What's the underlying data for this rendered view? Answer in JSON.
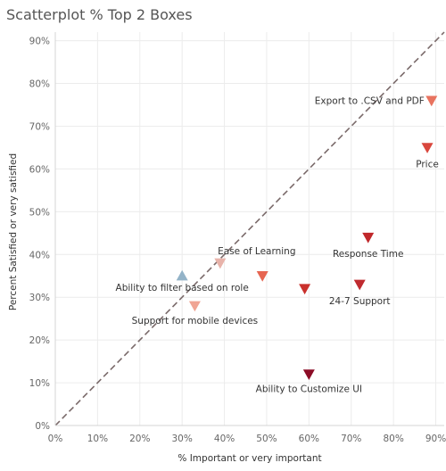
{
  "chart_data": {
    "type": "scatter",
    "title": "Scatterplot % Top 2 Boxes",
    "xlabel": "% Important or very important",
    "ylabel": "Percent Satisfied or very satisfied",
    "xlim": [
      0,
      92
    ],
    "ylim": [
      0,
      92
    ],
    "x_ticks": [
      "0%",
      "10%",
      "20%",
      "30%",
      "40%",
      "50%",
      "60%",
      "70%",
      "80%",
      "90%"
    ],
    "y_ticks": [
      "0%",
      "10%",
      "20%",
      "30%",
      "40%",
      "50%",
      "60%",
      "70%",
      "80%",
      "90%"
    ],
    "grid": true,
    "reference_line": "diagonal y = x (dashed)",
    "points": [
      {
        "label": "Export to .CSV and PDF",
        "x": 89,
        "y": 76,
        "shape": "triangle-down",
        "color": "#e8735f"
      },
      {
        "label": "Price",
        "x": 88,
        "y": 65,
        "shape": "triangle-down",
        "color": "#d9473d"
      },
      {
        "label": "Response Time",
        "x": 74,
        "y": 44,
        "shape": "triangle-down",
        "color": "#c0282b"
      },
      {
        "label": "24-7 Support",
        "x": 72,
        "y": 33,
        "shape": "triangle-down",
        "color": "#bf2a2e"
      },
      {
        "label": "",
        "x": 59,
        "y": 32,
        "shape": "triangle-down",
        "color": "#c9302c"
      },
      {
        "label": "",
        "x": 49,
        "y": 35,
        "shape": "triangle-down",
        "color": "#e66551"
      },
      {
        "label": "Ease of Learning",
        "x": 39,
        "y": 38,
        "shape": "triangle-down",
        "color": "#e8b3aa"
      },
      {
        "label": "Ability to filter based on role",
        "x": 30,
        "y": 35,
        "shape": "triangle-up",
        "color": "#93b3c8"
      },
      {
        "label": "Support for mobile devices",
        "x": 33,
        "y": 28,
        "shape": "triangle-down",
        "color": "#f0a493"
      },
      {
        "label": "Ability to Customize UI",
        "x": 60,
        "y": 12,
        "shape": "triangle-down",
        "color": "#8c0c26"
      }
    ]
  }
}
